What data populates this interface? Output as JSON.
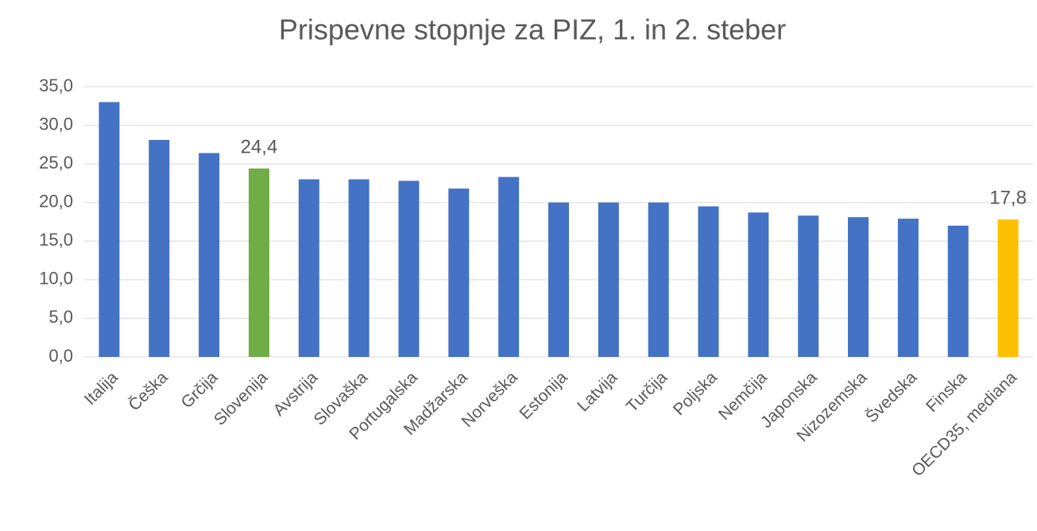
{
  "chart_data": {
    "type": "bar",
    "title": "Prispevne stopnje za PIZ, 1. in 2. steber",
    "categories": [
      "Italija",
      "Češka",
      "Grčija",
      "Slovenija",
      "Avstrija",
      "Slovaška",
      "Portugalska",
      "Madžarska",
      "Norveška",
      "Estonija",
      "Latvija",
      "Turčija",
      "Poljska",
      "Nemčija",
      "Japonska",
      "Nizozemska",
      "Švedska",
      "Finska",
      "OECD35, mediana"
    ],
    "values": [
      33.0,
      28.1,
      26.4,
      24.4,
      23.0,
      23.0,
      22.8,
      21.8,
      23.3,
      20.0,
      20.0,
      20.0,
      19.5,
      18.7,
      18.3,
      18.1,
      17.9,
      17.0,
      17.8
    ],
    "value_labels": [
      null,
      null,
      null,
      "24,4",
      null,
      null,
      null,
      null,
      null,
      null,
      null,
      null,
      null,
      null,
      null,
      null,
      null,
      null,
      "17,8"
    ],
    "colors": [
      "#4472c4",
      "#4472c4",
      "#4472c4",
      "#70ad47",
      "#4472c4",
      "#4472c4",
      "#4472c4",
      "#4472c4",
      "#4472c4",
      "#4472c4",
      "#4472c4",
      "#4472c4",
      "#4472c4",
      "#4472c4",
      "#4472c4",
      "#4472c4",
      "#4472c4",
      "#4472c4",
      "#ffc000"
    ],
    "ylim": [
      0,
      35
    ],
    "yticks": [
      {
        "value": 0,
        "label": "0,0"
      },
      {
        "value": 5,
        "label": "5,0"
      },
      {
        "value": 10,
        "label": "10,0"
      },
      {
        "value": 15,
        "label": "15,0"
      },
      {
        "value": 20,
        "label": "20,0"
      },
      {
        "value": 25,
        "label": "25,0"
      },
      {
        "value": 30,
        "label": "30,0"
      },
      {
        "value": 35,
        "label": "35,0"
      }
    ],
    "grid": true
  }
}
